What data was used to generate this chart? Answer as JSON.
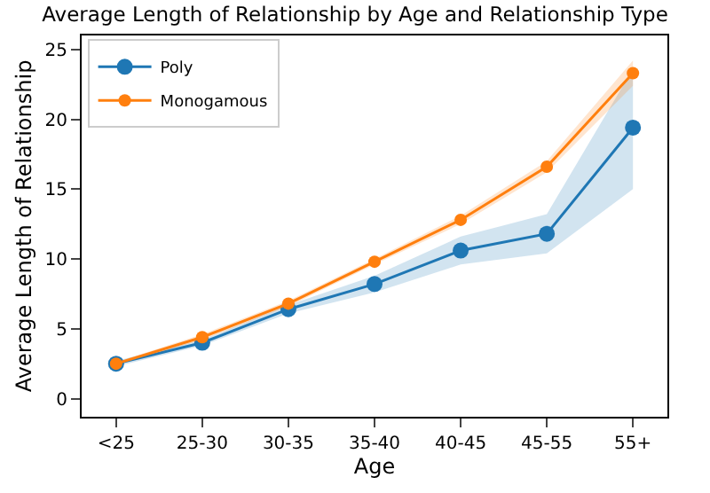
{
  "chart_data": {
    "type": "line",
    "title": "Average Length of Relationship by Age and Relationship Type",
    "xlabel": "Age",
    "ylabel": "Average Length of Relationship",
    "categories": [
      "<25",
      "25-30",
      "30-35",
      "35-40",
      "40-45",
      "45-55",
      "55+"
    ],
    "series": [
      {
        "name": "Poly",
        "color": "#1f77b4",
        "values": [
          2.5,
          4.0,
          6.4,
          8.2,
          10.6,
          11.8,
          19.4
        ],
        "lower": [
          2.3,
          3.8,
          6.1,
          7.6,
          9.6,
          10.4,
          15.0
        ],
        "upper": [
          2.7,
          4.2,
          6.7,
          8.8,
          11.6,
          13.2,
          23.6
        ]
      },
      {
        "name": "Monogamous",
        "color": "#ff7f0e",
        "values": [
          2.5,
          4.4,
          6.8,
          9.8,
          12.8,
          16.6,
          23.3
        ],
        "lower": [
          2.4,
          4.2,
          6.6,
          9.6,
          12.5,
          16.2,
          22.4
        ],
        "upper": [
          2.6,
          4.6,
          7.0,
          10.0,
          13.1,
          17.0,
          24.2
        ]
      }
    ],
    "ylim": [
      -1.3,
      26
    ],
    "yticks": [
      0,
      5,
      10,
      15,
      20,
      25
    ],
    "legend": "top left",
    "marker": "circle",
    "line_style": "solid"
  }
}
